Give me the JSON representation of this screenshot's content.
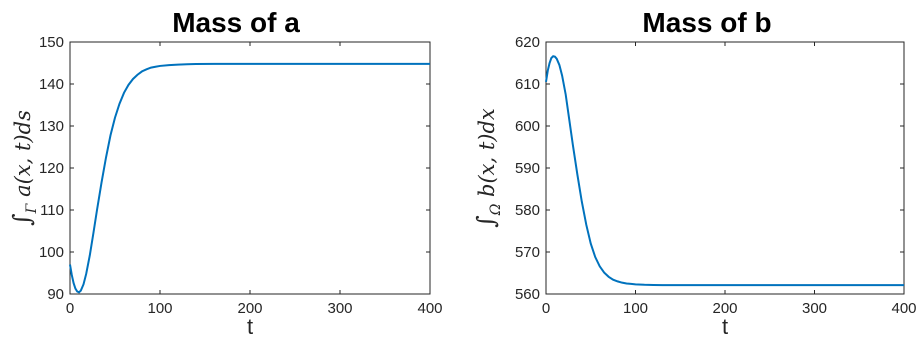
{
  "chart_data": [
    {
      "type": "line",
      "title": "Mass of a",
      "xlabel": "t",
      "ylabel": "∫Γ a(x,t)ds",
      "ylabel_parts": {
        "integral": "∫",
        "sub": "Γ",
        "body": " a(x, t)ds"
      },
      "xlim": [
        0,
        400
      ],
      "ylim": [
        90,
        150
      ],
      "xticks": [
        0,
        100,
        200,
        300,
        400
      ],
      "yticks": [
        90,
        100,
        110,
        120,
        130,
        140,
        150
      ],
      "grid": false,
      "color": "#0072BD",
      "series": [
        {
          "x": [
            0,
            2,
            4,
            6,
            8,
            10,
            12,
            15,
            18,
            22,
            26,
            30,
            35,
            40,
            45,
            50,
            55,
            60,
            65,
            70,
            75,
            80,
            85,
            90,
            95,
            100,
            110,
            120,
            130,
            140,
            160,
            200,
            250,
            300,
            350,
            400
          ],
          "values": [
            97,
            94.5,
            92.6,
            91.3,
            90.6,
            90.4,
            90.8,
            92.3,
            94.8,
            99.2,
            104.5,
            110,
            116.5,
            122.5,
            127.8,
            132,
            135.3,
            137.9,
            139.8,
            141.2,
            142.2,
            143,
            143.5,
            143.9,
            144.1,
            144.3,
            144.5,
            144.6,
            144.7,
            144.75,
            144.8,
            144.8,
            144.8,
            144.8,
            144.8,
            144.8
          ]
        }
      ]
    },
    {
      "type": "line",
      "title": "Mass of b",
      "xlabel": "t",
      "ylabel": "∫Ω b(x,t)dx",
      "ylabel_parts": {
        "integral": "∫",
        "sub": "Ω",
        "body": " b(x, t)dx"
      },
      "xlim": [
        0,
        400
      ],
      "ylim": [
        560,
        620
      ],
      "xticks": [
        0,
        100,
        200,
        300,
        400
      ],
      "yticks": [
        560,
        570,
        580,
        590,
        600,
        610,
        620
      ],
      "grid": false,
      "color": "#0072BD",
      "series": [
        {
          "x": [
            0,
            2,
            4,
            6,
            8,
            10,
            12,
            15,
            18,
            22,
            26,
            30,
            35,
            40,
            45,
            50,
            55,
            60,
            65,
            70,
            75,
            80,
            85,
            90,
            95,
            100,
            110,
            120,
            130,
            140,
            160,
            200,
            250,
            300,
            350,
            400
          ],
          "values": [
            610.5,
            613.2,
            615,
            616.2,
            616.6,
            616.5,
            616,
            614.5,
            612,
            607.5,
            601.5,
            595.5,
            588.5,
            582,
            576.5,
            572,
            568.8,
            566.6,
            565.1,
            564.1,
            563.4,
            563,
            562.7,
            562.5,
            562.4,
            562.3,
            562.2,
            562.15,
            562.1,
            562.1,
            562.1,
            562.1,
            562.1,
            562.1,
            562.1,
            562.1
          ]
        }
      ]
    }
  ]
}
